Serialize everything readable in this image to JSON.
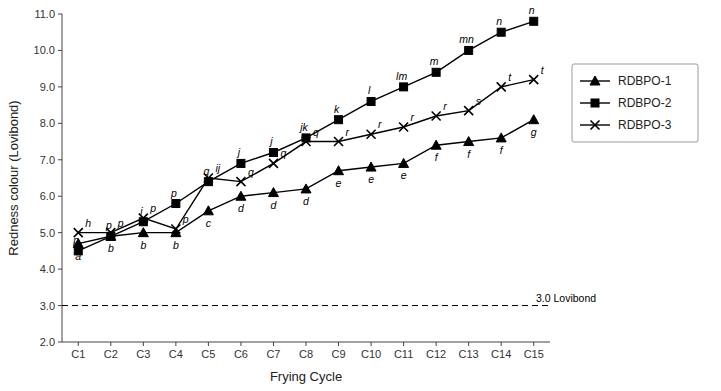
{
  "chart_data": {
    "type": "line",
    "x_label": "Frying Cycle",
    "y_label": "Redness colour (Lovibond)",
    "categories": [
      "C1",
      "C2",
      "C3",
      "C4",
      "C5",
      "C6",
      "C7",
      "C8",
      "C9",
      "C10",
      "C11",
      "C12",
      "C13",
      "C14",
      "C15"
    ],
    "series": [
      {
        "name": "RDBPO-1",
        "color": "#000000",
        "marker": "triangle",
        "line_style": "solid",
        "values": [
          4.7,
          4.9,
          5.0,
          5.0,
          5.6,
          6.0,
          6.1,
          6.2,
          6.7,
          6.8,
          6.9,
          7.4,
          7.5,
          7.6,
          8.1
        ],
        "annotations": [
          "a",
          "b",
          "b",
          "b",
          "c",
          "d",
          "d",
          "d",
          "e",
          "e",
          "e",
          "f",
          "f",
          "f",
          "g"
        ]
      },
      {
        "name": "RDBPO-2",
        "color": "#000000",
        "marker": "square",
        "line_style": "solid",
        "values": [
          4.5,
          4.9,
          5.3,
          5.8,
          6.4,
          6.9,
          7.2,
          7.6,
          8.1,
          8.6,
          9.0,
          9.4,
          10.0,
          10.5,
          10.8
        ],
        "annotations": [
          "p",
          "p",
          "i",
          "p",
          "q",
          "j",
          "j",
          "jk",
          "k",
          "l",
          "lm",
          "m",
          "mn",
          "n",
          "n"
        ]
      },
      {
        "name": "RDBPO-3",
        "color": "#000000",
        "marker": "x",
        "line_style": "solid",
        "values": [
          5.0,
          5.0,
          5.4,
          5.1,
          6.5,
          6.4,
          6.9,
          7.5,
          7.5,
          7.7,
          7.9,
          8.2,
          8.35,
          9.0,
          9.2
        ],
        "annotations": [
          "h",
          "p",
          "p",
          "p",
          "ij",
          "q",
          "q",
          "q",
          "r",
          "r",
          "r",
          "r",
          "s",
          "t",
          "t"
        ]
      }
    ],
    "reference_line": {
      "value": 3.0,
      "label": "3.0 Lovibond",
      "color": "#000000",
      "line_style": "dashed"
    },
    "ylim": [
      2.0,
      11.0
    ],
    "yticks": [
      {
        "value": 2.0,
        "label": "2.0"
      },
      {
        "value": 3.0,
        "label": "3.0"
      },
      {
        "value": 4.0,
        "label": "4.0"
      },
      {
        "value": 5.0,
        "label": "5.0"
      },
      {
        "value": 6.0,
        "label": "6.0"
      },
      {
        "value": 7.0,
        "label": "7.0"
      },
      {
        "value": 8.0,
        "label": "8.0"
      },
      {
        "value": 9.0,
        "label": "9.0"
      },
      {
        "value": 10.0,
        "label": "10.0"
      },
      {
        "value": 11.0,
        "label": "11.0"
      }
    ],
    "grid": false,
    "legend": "right"
  }
}
